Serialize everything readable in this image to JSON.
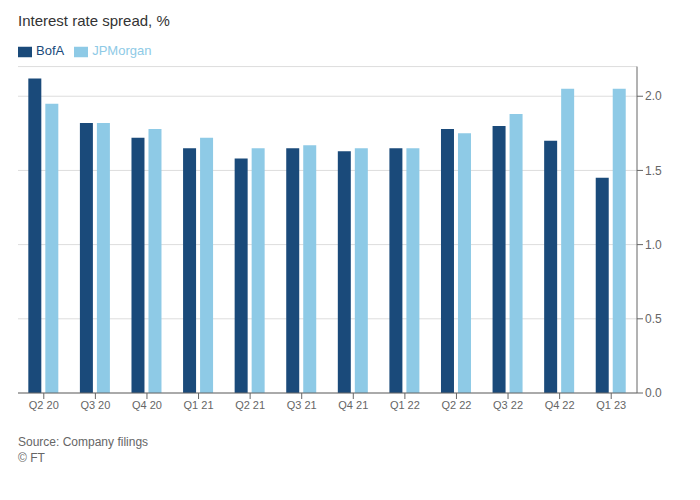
{
  "chart_data": {
    "type": "bar",
    "title": "Interest rate spread, %",
    "categories": [
      "Q2 20",
      "Q3 20",
      "Q4 20",
      "Q1 21",
      "Q2 21",
      "Q3 21",
      "Q4 21",
      "Q1 22",
      "Q2 22",
      "Q3 22",
      "Q4 22",
      "Q1 23"
    ],
    "series": [
      {
        "name": "BofA",
        "color": "#1a4a7a",
        "values": [
          2.12,
          1.82,
          1.72,
          1.65,
          1.58,
          1.65,
          1.63,
          1.65,
          1.78,
          1.8,
          1.7,
          1.45
        ]
      },
      {
        "name": "JPMorgan",
        "color": "#8ecae6",
        "values": [
          1.95,
          1.82,
          1.78,
          1.72,
          1.65,
          1.67,
          1.65,
          1.65,
          1.75,
          1.88,
          2.05,
          2.05
        ]
      }
    ],
    "ylim": [
      0,
      2.2
    ],
    "yticks": [
      {
        "value": 0,
        "label": "0.0"
      },
      0.5,
      {
        "value": 1.0,
        "label": "1.0"
      },
      1.5,
      {
        "value": 2.0,
        "label": "2.0"
      }
    ],
    "grid": true,
    "legend": "upper left",
    "annotations": [
      "Source: Company filings",
      "© FT"
    ]
  }
}
